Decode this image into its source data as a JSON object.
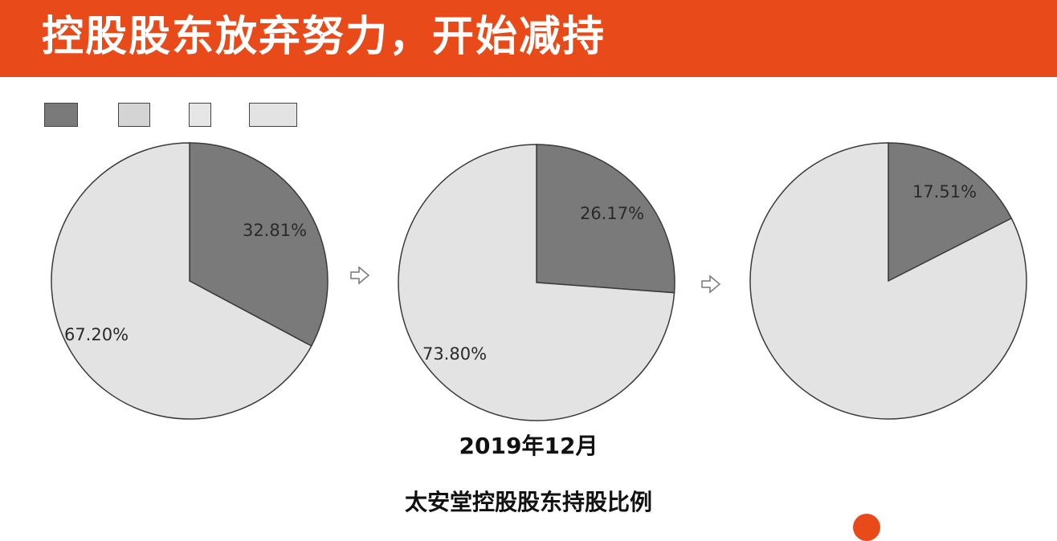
{
  "header": {
    "title": "控股股东放弃努力，开始减持"
  },
  "legend": {
    "swatches": [
      {
        "color": "#7a7a7a"
      },
      {
        "color": "#d4d4d4"
      },
      {
        "color": "#e6e6e6"
      },
      {
        "color": "#e3e3e3"
      }
    ]
  },
  "arrows": [
    {
      "icon": "arrow-right-icon"
    },
    {
      "icon": "arrow-right-icon"
    }
  ],
  "chart_data": [
    {
      "type": "pie",
      "slices": [
        {
          "value": 32.81,
          "label": "32.81%",
          "color": "#7a7a7a"
        },
        {
          "value": 67.2,
          "label": "67.20%",
          "color": "#e3e3e3"
        }
      ]
    },
    {
      "type": "pie",
      "slices": [
        {
          "value": 26.17,
          "label": "26.17%",
          "color": "#7a7a7a"
        },
        {
          "value": 73.8,
          "label": "73.80%",
          "color": "#e3e3e3"
        }
      ]
    },
    {
      "type": "pie",
      "slices": [
        {
          "value": 17.51,
          "label": "17.51%",
          "color": "#7a7a7a"
        },
        {
          "value": 82.49,
          "label": "",
          "color": "#e3e3e3"
        }
      ]
    }
  ],
  "captions": {
    "date": "2019年12月",
    "title": "太安堂控股股东持股比例"
  }
}
